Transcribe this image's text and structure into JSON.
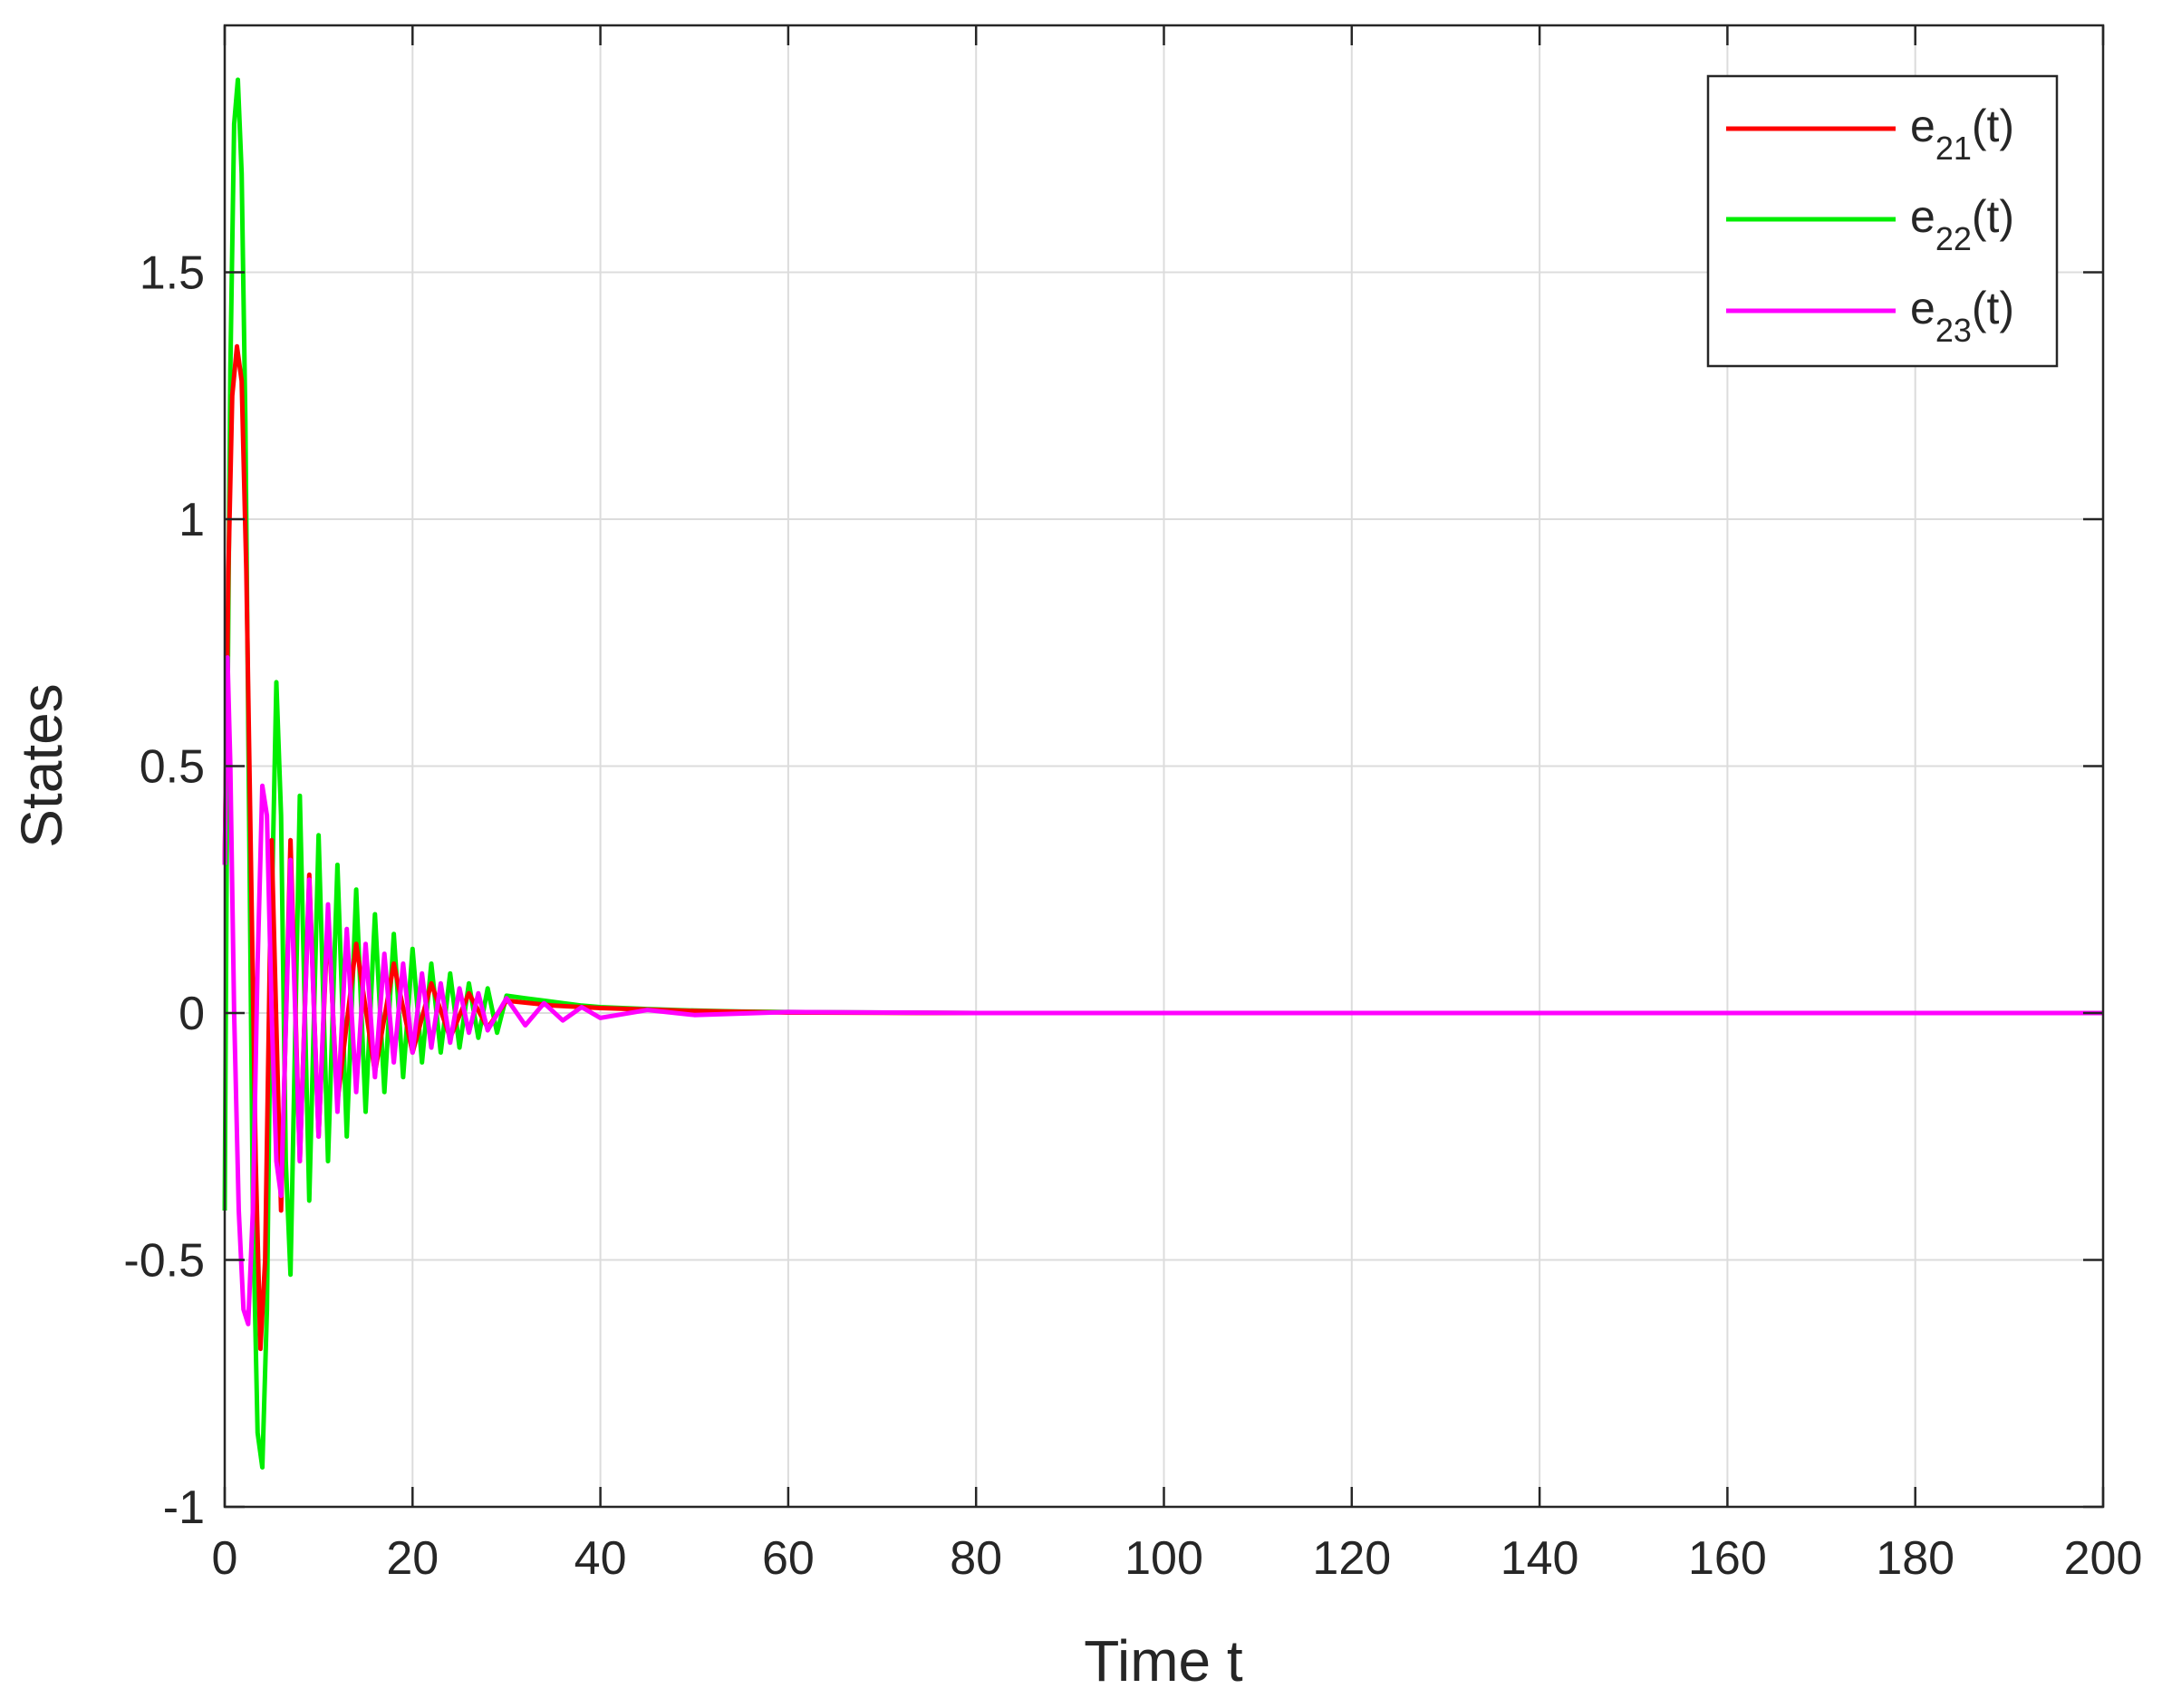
{
  "chart_data": {
    "type": "line",
    "xlabel": "Time t",
    "ylabel": "States",
    "xlim": [
      0,
      200
    ],
    "ylim": [
      -1,
      2
    ],
    "xticks": [
      0,
      20,
      40,
      60,
      80,
      100,
      120,
      140,
      160,
      180,
      200
    ],
    "xtick_labels": [
      "0",
      "20",
      "40",
      "60",
      "80",
      "100",
      "120",
      "140",
      "160",
      "180",
      "200"
    ],
    "yticks": [
      -1,
      -0.5,
      0,
      0.5,
      1,
      1.5
    ],
    "ytick_labels": [
      "-1",
      "-0.5",
      "0",
      "0.5",
      "1",
      "1.5"
    ],
    "grid": true,
    "legend_position": "top-right",
    "series": [
      {
        "name_base": "e",
        "name_sub": "21",
        "name_suffix": "(t)",
        "color": "#ff0000",
        "x": [
          0,
          0.4,
          0.8,
          1.3,
          1.8,
          2.3,
          2.8,
          3.3,
          3.8,
          4.3,
          5.0,
          6.0,
          7.0,
          8.0,
          9.0,
          10,
          11,
          12,
          14,
          16,
          18,
          20,
          22,
          24,
          26,
          28,
          30,
          35,
          40,
          50,
          60,
          80,
          200
        ],
        "y": [
          0.3,
          0.9,
          1.25,
          1.35,
          1.28,
          0.9,
          0.3,
          -0.3,
          -0.68,
          -0.5,
          0.35,
          -0.4,
          0.35,
          -0.3,
          0.28,
          -0.25,
          0.2,
          -0.18,
          0.14,
          -0.12,
          0.1,
          -0.08,
          0.06,
          -0.05,
          0.04,
          -0.03,
          0.025,
          0.015,
          0.01,
          0.004,
          0.001,
          0,
          0
        ]
      },
      {
        "name_base": "e",
        "name_sub": "22",
        "name_suffix": "(t)",
        "color": "#00ee00",
        "x": [
          0,
          0.3,
          0.6,
          1.0,
          1.4,
          1.8,
          2.2,
          2.6,
          3.0,
          3.5,
          4.0,
          4.5,
          5.0,
          5.5,
          6.0,
          6.5,
          7.0,
          8.0,
          9.0,
          10,
          11,
          12,
          13,
          14,
          15,
          16,
          17,
          18,
          19,
          20,
          21,
          22,
          23,
          24,
          25,
          26,
          27,
          28,
          29,
          30,
          32,
          34,
          36,
          38,
          40,
          45,
          50,
          55,
          60,
          70,
          80,
          200
        ],
        "y": [
          -0.4,
          0.6,
          1.3,
          1.8,
          1.89,
          1.7,
          1.2,
          0.4,
          -0.4,
          -0.85,
          -0.92,
          -0.6,
          0.2,
          0.67,
          0.4,
          -0.3,
          -0.53,
          0.44,
          -0.38,
          0.36,
          -0.3,
          0.3,
          -0.25,
          0.25,
          -0.2,
          0.2,
          -0.16,
          0.16,
          -0.13,
          0.13,
          -0.1,
          0.1,
          -0.08,
          0.08,
          -0.07,
          0.06,
          -0.05,
          0.05,
          -0.04,
          0.035,
          0.03,
          0.025,
          0.02,
          0.015,
          0.012,
          0.008,
          0.005,
          0.003,
          0.002,
          0.001,
          0,
          0
        ]
      },
      {
        "name_base": "e",
        "name_sub": "23",
        "name_suffix": "(t)",
        "color": "#ff00ff",
        "x": [
          0,
          0.3,
          0.6,
          1.0,
          1.5,
          2.0,
          2.5,
          3.0,
          3.5,
          4.0,
          4.5,
          5.0,
          5.5,
          6.0,
          7.0,
          8.0,
          9.0,
          10,
          11,
          12,
          13,
          14,
          15,
          16,
          17,
          18,
          19,
          20,
          21,
          22,
          23,
          24,
          25,
          26,
          27,
          28,
          30,
          32,
          34,
          36,
          38,
          40,
          45,
          50,
          60,
          80,
          200
        ],
        "y": [
          0.3,
          0.72,
          0.5,
          0.0,
          -0.4,
          -0.6,
          -0.63,
          -0.4,
          0.1,
          0.46,
          0.4,
          0.0,
          -0.3,
          -0.37,
          0.31,
          -0.3,
          0.27,
          -0.25,
          0.22,
          -0.2,
          0.17,
          -0.16,
          0.14,
          -0.13,
          0.12,
          -0.1,
          0.1,
          -0.08,
          0.08,
          -0.07,
          0.06,
          -0.06,
          0.05,
          -0.04,
          0.04,
          -0.035,
          0.03,
          -0.025,
          0.02,
          -0.015,
          0.012,
          -0.01,
          0.006,
          -0.004,
          0.002,
          0,
          0
        ]
      }
    ]
  }
}
